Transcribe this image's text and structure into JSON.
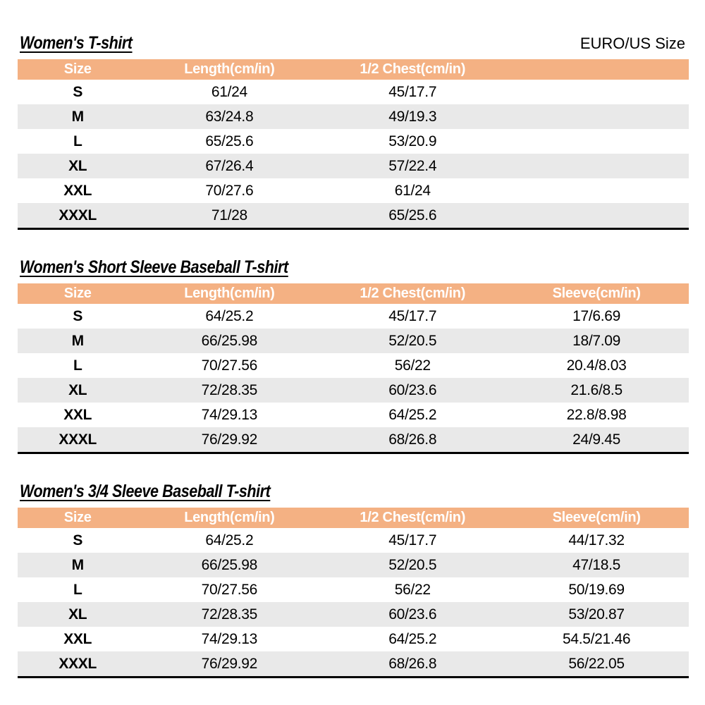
{
  "page": {
    "size_system_label": "EURO/US Size"
  },
  "colors": {
    "header_bg": "#F4B183",
    "header_text": "#FFFFFF",
    "row_alt_bg": "#E9E9E9",
    "body_text": "#000000",
    "table_bottom_border": "#000000"
  },
  "tables": [
    {
      "title": "Women's T-shirt",
      "columns": [
        "Size",
        "Length(cm/in)",
        "1/2 Chest(cm/in)"
      ],
      "rows": [
        [
          "S",
          "61/24",
          "45/17.7"
        ],
        [
          "M",
          "63/24.8",
          "49/19.3"
        ],
        [
          "L",
          "65/25.6",
          "53/20.9"
        ],
        [
          "XL",
          "67/26.4",
          "57/22.4"
        ],
        [
          "XXL",
          "70/27.6",
          "61/24"
        ],
        [
          "XXXL",
          "71/28",
          "65/25.6"
        ]
      ]
    },
    {
      "title": "Women's Short Sleeve Baseball T-shirt",
      "columns": [
        "Size",
        "Length(cm/in)",
        "1/2 Chest(cm/in)",
        "Sleeve(cm/in)"
      ],
      "rows": [
        [
          "S",
          "64/25.2",
          "45/17.7",
          "17/6.69"
        ],
        [
          "M",
          "66/25.98",
          "52/20.5",
          "18/7.09"
        ],
        [
          "L",
          "70/27.56",
          "56/22",
          "20.4/8.03"
        ],
        [
          "XL",
          "72/28.35",
          "60/23.6",
          "21.6/8.5"
        ],
        [
          "XXL",
          "74/29.13",
          "64/25.2",
          "22.8/8.98"
        ],
        [
          "XXXL",
          "76/29.92",
          "68/26.8",
          "24/9.45"
        ]
      ]
    },
    {
      "title": "Women's 3/4 Sleeve Baseball T-shirt",
      "columns": [
        "Size",
        "Length(cm/in)",
        "1/2 Chest(cm/in)",
        "Sleeve(cm/in)"
      ],
      "rows": [
        [
          "S",
          "64/25.2",
          "45/17.7",
          "44/17.32"
        ],
        [
          "M",
          "66/25.98",
          "52/20.5",
          "47/18.5"
        ],
        [
          "L",
          "70/27.56",
          "56/22",
          "50/19.69"
        ],
        [
          "XL",
          "72/28.35",
          "60/23.6",
          "53/20.87"
        ],
        [
          "XXL",
          "74/29.13",
          "64/25.2",
          "54.5/21.46"
        ],
        [
          "XXXL",
          "76/29.92",
          "68/26.8",
          "56/22.05"
        ]
      ]
    }
  ]
}
